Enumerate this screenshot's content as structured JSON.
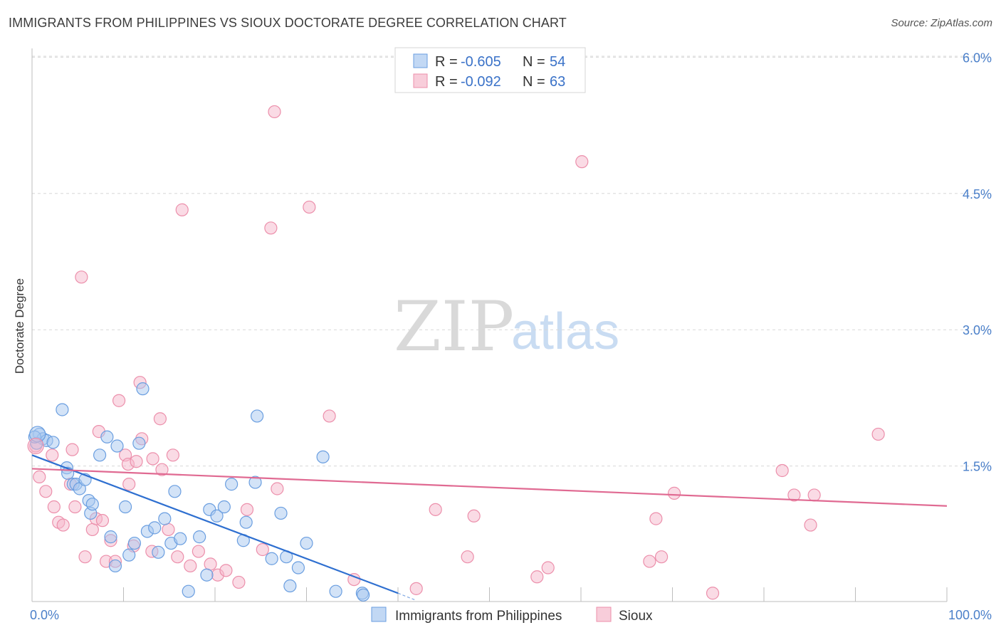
{
  "header": {
    "title": "IMMIGRANTS FROM PHILIPPINES VS SIOUX DOCTORATE DEGREE CORRELATION CHART",
    "source": "Source: ZipAtlas.com"
  },
  "watermark": {
    "zip": "ZIP",
    "atlas": "atlas"
  },
  "colors": {
    "blue_fill": "#a8c8f0",
    "blue_stroke": "#6a9ee0",
    "blue_line": "#2e6fd0",
    "pink_fill": "#f5b8cb",
    "pink_stroke": "#ec8fab",
    "pink_line": "#e06a92",
    "grid": "#d8d8d8",
    "axis_text": "#4a7fc9"
  },
  "legend": {
    "blue": {
      "r_label": "R = ",
      "r_value": "-0.605",
      "n_label": "N = ",
      "n_value": "54"
    },
    "pink": {
      "r_label": "R = ",
      "r_value": "-0.092",
      "n_label": "N = ",
      "n_value": "63"
    }
  },
  "chart_data": {
    "type": "scatter",
    "title": "IMMIGRANTS FROM PHILIPPINES VS SIOUX DOCTORATE DEGREE CORRELATION CHART",
    "xlabel": "",
    "ylabel": "Doctorate Degree",
    "xlim": [
      0,
      100
    ],
    "ylim": [
      0,
      6.2
    ],
    "x_ticks": [
      "0.0%",
      "100.0%"
    ],
    "y_ticks": [
      {
        "value": 1.5,
        "label": "1.5%"
      },
      {
        "value": 3.0,
        "label": "3.0%"
      },
      {
        "value": 4.5,
        "label": "4.5%"
      },
      {
        "value": 6.0,
        "label": "6.0%"
      }
    ],
    "grid": true,
    "legend_position": "top-center",
    "series": [
      {
        "name": "Immigrants from Philippines",
        "color": "blue",
        "r": -0.605,
        "n": 54,
        "trend": {
          "x0": 0,
          "y0": 1.62,
          "x1": 40,
          "y1": 0.1,
          "dash_to_x": 42,
          "dash_to_y": 0.02
        },
        "points": [
          [
            0.8,
            1.85
          ],
          [
            1.2,
            1.8
          ],
          [
            1.6,
            1.78
          ],
          [
            0.5,
            1.75
          ],
          [
            2.3,
            1.76
          ],
          [
            3.3,
            2.12
          ],
          [
            3.8,
            1.48
          ],
          [
            3.9,
            1.42
          ],
          [
            4.5,
            1.3
          ],
          [
            4.8,
            1.3
          ],
          [
            5.2,
            1.25
          ],
          [
            5.8,
            1.35
          ],
          [
            6.2,
            1.12
          ],
          [
            6.4,
            0.98
          ],
          [
            6.6,
            1.08
          ],
          [
            7.4,
            1.62
          ],
          [
            8.2,
            1.82
          ],
          [
            8.6,
            0.72
          ],
          [
            9.1,
            0.4
          ],
          [
            9.3,
            1.72
          ],
          [
            10.2,
            1.05
          ],
          [
            10.6,
            0.52
          ],
          [
            11.2,
            0.65
          ],
          [
            11.7,
            1.75
          ],
          [
            12.1,
            2.35
          ],
          [
            12.6,
            0.78
          ],
          [
            13.4,
            0.82
          ],
          [
            13.8,
            0.55
          ],
          [
            14.5,
            0.92
          ],
          [
            15.2,
            0.65
          ],
          [
            15.6,
            1.22
          ],
          [
            16.2,
            0.7
          ],
          [
            17.1,
            0.12
          ],
          [
            18.3,
            0.72
          ],
          [
            19.1,
            0.3
          ],
          [
            19.4,
            1.02
          ],
          [
            20.2,
            0.95
          ],
          [
            21.0,
            1.05
          ],
          [
            21.8,
            1.3
          ],
          [
            23.1,
            0.68
          ],
          [
            23.4,
            0.88
          ],
          [
            24.4,
            1.32
          ],
          [
            24.6,
            2.05
          ],
          [
            26.2,
            0.48
          ],
          [
            27.2,
            0.98
          ],
          [
            27.8,
            0.5
          ],
          [
            28.2,
            0.18
          ],
          [
            29.1,
            0.38
          ],
          [
            30.0,
            0.65
          ],
          [
            31.8,
            1.6
          ],
          [
            33.2,
            0.12
          ],
          [
            36.1,
            0.1
          ],
          [
            36.2,
            0.08
          ],
          [
            0.3,
            1.82
          ]
        ]
      },
      {
        "name": "Sioux",
        "color": "pink",
        "r": -0.092,
        "n": 63,
        "trend": {
          "x0": 0,
          "y0": 1.47,
          "x1": 100,
          "y1": 1.06
        },
        "points": [
          [
            0.4,
            1.72
          ],
          [
            0.8,
            1.38
          ],
          [
            1.5,
            1.22
          ],
          [
            2.2,
            1.62
          ],
          [
            2.4,
            1.05
          ],
          [
            2.9,
            0.88
          ],
          [
            3.4,
            0.85
          ],
          [
            4.2,
            1.3
          ],
          [
            4.4,
            1.68
          ],
          [
            4.7,
            1.05
          ],
          [
            5.4,
            3.58
          ],
          [
            5.8,
            0.5
          ],
          [
            6.6,
            0.8
          ],
          [
            7.0,
            0.92
          ],
          [
            7.3,
            1.88
          ],
          [
            7.7,
            0.9
          ],
          [
            8.1,
            0.45
          ],
          [
            8.6,
            0.68
          ],
          [
            9.1,
            0.45
          ],
          [
            9.5,
            2.22
          ],
          [
            10.2,
            1.62
          ],
          [
            10.5,
            1.52
          ],
          [
            10.6,
            1.3
          ],
          [
            11.1,
            0.62
          ],
          [
            11.4,
            1.55
          ],
          [
            11.8,
            2.42
          ],
          [
            12.0,
            1.8
          ],
          [
            13.1,
            0.56
          ],
          [
            13.2,
            1.58
          ],
          [
            14.0,
            2.02
          ],
          [
            14.2,
            1.46
          ],
          [
            14.9,
            0.8
          ],
          [
            15.4,
            1.62
          ],
          [
            15.9,
            0.5
          ],
          [
            16.4,
            4.32
          ],
          [
            17.3,
            0.4
          ],
          [
            18.2,
            0.56
          ],
          [
            19.5,
            0.42
          ],
          [
            20.3,
            0.3
          ],
          [
            21.2,
            0.35
          ],
          [
            22.6,
            0.22
          ],
          [
            23.5,
            1.02
          ],
          [
            25.2,
            0.58
          ],
          [
            26.1,
            4.12
          ],
          [
            26.5,
            5.4
          ],
          [
            26.8,
            1.25
          ],
          [
            30.3,
            4.35
          ],
          [
            32.5,
            2.05
          ],
          [
            35.2,
            0.25
          ],
          [
            42.0,
            0.15
          ],
          [
            44.1,
            1.02
          ],
          [
            47.6,
            0.5
          ],
          [
            48.3,
            0.95
          ],
          [
            55.2,
            0.28
          ],
          [
            56.4,
            0.38
          ],
          [
            60.1,
            4.85
          ],
          [
            67.5,
            0.45
          ],
          [
            68.2,
            0.92
          ],
          [
            68.8,
            0.5
          ],
          [
            70.2,
            1.2
          ],
          [
            74.4,
            0.1
          ],
          [
            82.0,
            1.45
          ],
          [
            85.1,
            0.85
          ]
        ]
      }
    ],
    "extra_pink_points": [
      [
        83.3,
        1.18
      ],
      [
        85.5,
        1.18
      ],
      [
        92.5,
        1.85
      ]
    ]
  },
  "bottom_legend": {
    "blue_label": "Immigrants from Philippines",
    "pink_label": "Sioux"
  }
}
